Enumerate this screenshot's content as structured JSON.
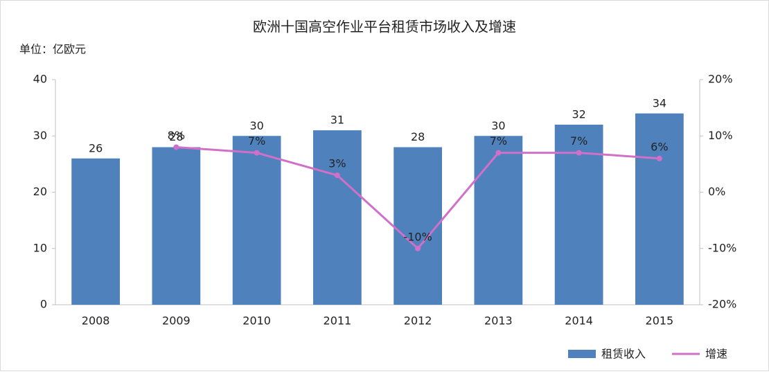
{
  "chart_data": {
    "type": "bar",
    "title": "欧洲十国高空作业平台租赁市场收入及增速",
    "subtitle": "单位：亿欧元",
    "categories": [
      "2008",
      "2009",
      "2010",
      "2011",
      "2012",
      "2013",
      "2014",
      "2015"
    ],
    "series": [
      {
        "name": "租赁收入",
        "color": "#4f81bd",
        "values": [
          26,
          28,
          30,
          31,
          28,
          30,
          32,
          34
        ]
      },
      {
        "name": "增速",
        "color": "#d070c8",
        "axis": "y2",
        "type": "line",
        "values": [
          null,
          8,
          7,
          3,
          -10,
          7,
          7,
          6
        ],
        "value_labels": [
          null,
          "8%",
          "7%",
          "3%",
          "-10%",
          "7%",
          "7%",
          "6%"
        ]
      }
    ],
    "ylim": [
      0,
      40
    ],
    "yticks": [
      0,
      10,
      20,
      30,
      40
    ],
    "y2lim": [
      -20,
      20
    ],
    "y2ticks": [
      {
        "value": -20,
        "label": "-20%"
      },
      {
        "value": -10,
        "label": "-10%"
      },
      {
        "value": 0,
        "label": "0%"
      },
      {
        "value": 10,
        "label": "10%"
      },
      {
        "value": 20,
        "label": "20%"
      }
    ]
  }
}
